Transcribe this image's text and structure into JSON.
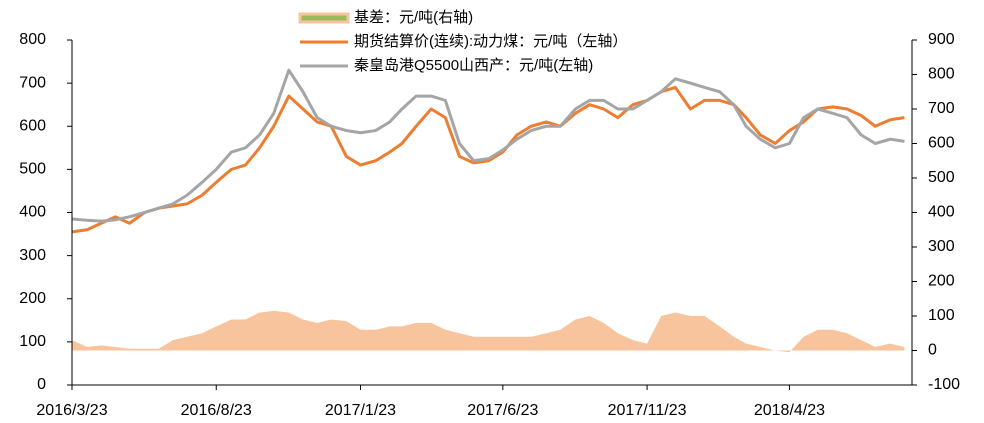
{
  "chart_data": {
    "type": "line",
    "x": [
      "2016/3/23",
      "2016/4/8",
      "2016/4/23",
      "2016/5/8",
      "2016/5/23",
      "2016/6/8",
      "2016/6/23",
      "2016/7/8",
      "2016/7/23",
      "2016/8/8",
      "2016/8/23",
      "2016/9/8",
      "2016/9/23",
      "2016/10/8",
      "2016/10/23",
      "2016/11/8",
      "2016/11/23",
      "2016/12/8",
      "2016/12/23",
      "2017/1/8",
      "2017/1/23",
      "2017/2/8",
      "2017/2/23",
      "2017/3/8",
      "2017/3/23",
      "2017/4/8",
      "2017/4/23",
      "2017/5/8",
      "2017/5/23",
      "2017/6/8",
      "2017/6/23",
      "2017/7/8",
      "2017/7/23",
      "2017/8/8",
      "2017/8/23",
      "2017/9/8",
      "2017/9/23",
      "2017/10/8",
      "2017/10/23",
      "2017/11/8",
      "2017/11/23",
      "2017/12/8",
      "2017/12/23",
      "2018/1/8",
      "2018/1/23",
      "2018/2/8",
      "2018/2/23",
      "2018/3/8",
      "2018/3/23",
      "2018/4/8",
      "2018/4/23",
      "2018/5/8",
      "2018/5/23",
      "2018/6/8",
      "2018/6/23",
      "2018/7/8",
      "2018/7/23",
      "2018/8/8",
      "2018/8/23"
    ],
    "xlim": [
      "2016/3/23",
      "2018/8/31"
    ],
    "xticks": [
      "2016/3/23",
      "2016/8/23",
      "2017/1/23",
      "2017/6/23",
      "2017/11/23",
      "2018/4/23"
    ],
    "ylim": [
      0,
      800
    ],
    "yticks": [
      0,
      100,
      200,
      300,
      400,
      500,
      600,
      700,
      800
    ],
    "y2lim": [
      -100,
      900
    ],
    "y2ticks": [
      -100,
      0,
      100,
      200,
      300,
      400,
      500,
      600,
      700,
      800,
      900
    ],
    "series": [
      {
        "name": "基差：元/吨(右轴)",
        "type": "area",
        "axis": "y2",
        "color": "#f8c49e",
        "legend_color": "#9bbb59",
        "values": [
          30,
          10,
          15,
          10,
          5,
          5,
          5,
          30,
          40,
          50,
          70,
          90,
          90,
          110,
          115,
          110,
          90,
          80,
          90,
          85,
          60,
          60,
          70,
          70,
          80,
          80,
          60,
          50,
          40,
          40,
          40,
          40,
          40,
          50,
          60,
          90,
          100,
          80,
          50,
          30,
          20,
          100,
          110,
          100,
          100,
          70,
          40,
          20,
          10,
          0,
          -5,
          40,
          60,
          60,
          50,
          30,
          10,
          20,
          10
        ]
      },
      {
        "name": "期货结算价(连续):动力煤：元/吨（左轴）",
        "type": "line",
        "axis": "y",
        "color": "#ed7d31",
        "values": [
          355,
          360,
          375,
          390,
          375,
          400,
          410,
          415,
          420,
          440,
          470,
          500,
          510,
          550,
          600,
          670,
          640,
          610,
          600,
          530,
          510,
          520,
          540,
          560,
          600,
          640,
          620,
          530,
          515,
          520,
          540,
          580,
          600,
          610,
          600,
          630,
          650,
          640,
          620,
          650,
          660,
          680,
          690,
          640,
          660,
          660,
          650,
          620,
          580,
          560,
          590,
          610,
          640,
          645,
          640,
          625,
          600,
          615,
          620
        ]
      },
      {
        "name": "秦皇岛港Q5500山西产：元/吨(左轴)",
        "type": "line",
        "axis": "y",
        "color": "#a5a5a5",
        "values": [
          385,
          382,
          380,
          383,
          390,
          400,
          410,
          420,
          440,
          470,
          500,
          540,
          550,
          580,
          630,
          730,
          680,
          620,
          600,
          590,
          585,
          590,
          610,
          640,
          670,
          670,
          660,
          560,
          520,
          525,
          545,
          570,
          590,
          600,
          600,
          640,
          660,
          660,
          640,
          640,
          660,
          680,
          710,
          700,
          690,
          680,
          650,
          600,
          570,
          550,
          560,
          620,
          640,
          630,
          620,
          580,
          560,
          570,
          565
        ]
      }
    ]
  }
}
